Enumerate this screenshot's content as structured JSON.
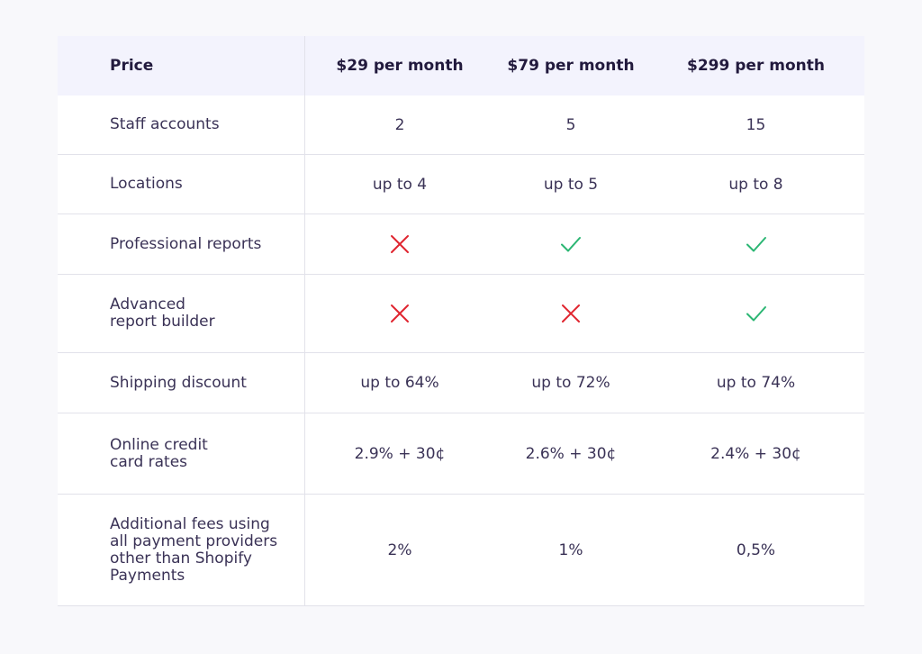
{
  "header": {
    "label": "Price",
    "plans": [
      "$29 per month",
      "$79 per month",
      "$299 per month"
    ]
  },
  "rows": [
    {
      "label": "Staff accounts",
      "values": [
        "2",
        "5",
        "15"
      ]
    },
    {
      "label": "Locations",
      "values": [
        "up to 4",
        "up to 5",
        "up to 8"
      ]
    },
    {
      "label": "Professional reports",
      "marks": [
        "cross-icon",
        "check-icon",
        "check-icon"
      ]
    },
    {
      "label": "Advanced\nreport builder",
      "marks": [
        "cross-icon",
        "cross-icon",
        "check-icon"
      ]
    },
    {
      "label": "Shipping discount",
      "values": [
        "up to 64%",
        "up to 72%",
        "up to 74%"
      ]
    },
    {
      "label": "Online credit\ncard rates",
      "values": [
        "2.9% + 30¢",
        "2.6% + 30¢",
        "2.4% + 30¢"
      ]
    },
    {
      "label": "Additional fees using\nall payment providers\nother than Shopify\nPayments",
      "values": [
        "2%",
        "1%",
        "0,5%"
      ]
    }
  ],
  "colors": {
    "check": "#2bb673",
    "cross": "#e0252f",
    "header_bg": "#f3f3fd"
  }
}
